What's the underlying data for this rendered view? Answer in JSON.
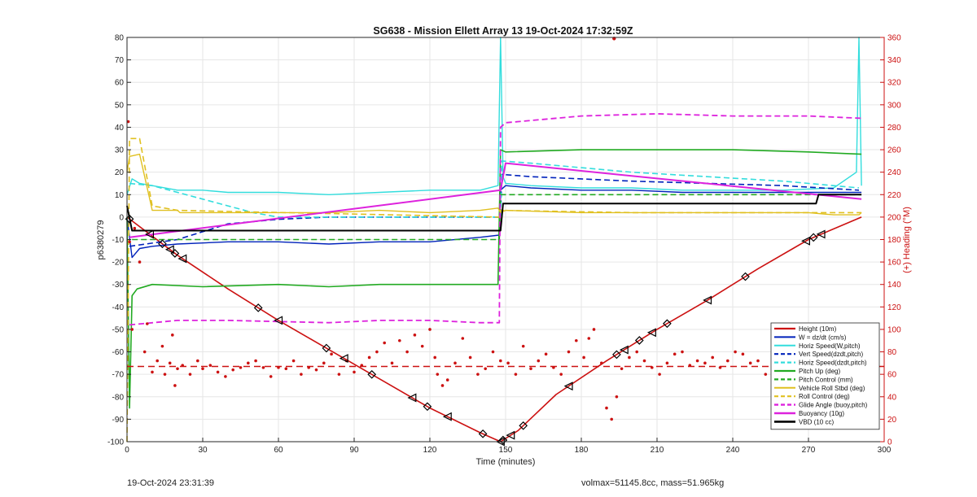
{
  "chart_data": {
    "type": "line",
    "title": "SG638 - Mission Ellett Array 13 19-Oct-2024 17:32:59Z",
    "xlabel": "Time (minutes)",
    "ylabel": "p6380279",
    "y2label": "(+) Heading (°M)",
    "xlim": [
      0,
      300
    ],
    "ylim": [
      -100,
      80
    ],
    "y2lim": [
      0,
      360
    ],
    "xticks": [
      0,
      30,
      60,
      90,
      120,
      150,
      180,
      210,
      240,
      270,
      300
    ],
    "yticks": [
      -100,
      -90,
      -80,
      -70,
      -60,
      -50,
      -40,
      -30,
      -20,
      -10,
      0,
      10,
      20,
      30,
      40,
      50,
      60,
      70,
      80
    ],
    "y2ticks": [
      0,
      20,
      40,
      60,
      80,
      100,
      120,
      140,
      160,
      180,
      200,
      220,
      240,
      260,
      280,
      300,
      320,
      340,
      360
    ],
    "grid": true,
    "legend_position": "bottom-right",
    "series": [
      {
        "name": "Height (10m)",
        "color": "#cc1111",
        "style": "solid",
        "width": 1.6,
        "x": [
          0,
          20,
          40,
          60,
          80,
          100,
          120,
          140,
          148,
          155,
          170,
          190,
          210,
          230,
          250,
          270,
          291
        ],
        "y": [
          0,
          -17,
          -32,
          -46,
          -59,
          -72,
          -85,
          -96,
          -100,
          -95,
          -79,
          -64,
          -50,
          -37,
          -23,
          -10,
          0
        ]
      },
      {
        "name": "W = dz/dt (cm/s)",
        "color": "#0022bb",
        "style": "solid",
        "width": 1.4,
        "x": [
          0,
          2,
          5,
          10,
          20,
          40,
          60,
          80,
          100,
          120,
          140,
          147.5,
          148,
          150,
          160,
          180,
          200,
          220,
          240,
          260,
          280,
          291
        ],
        "y": [
          0,
          -18,
          -14,
          -13,
          -12,
          -11,
          -11,
          -12,
          -11,
          -11,
          -9,
          -8,
          12,
          14,
          13,
          12,
          12,
          11,
          11,
          11,
          11,
          11
        ]
      },
      {
        "name": "Horiz Speed(W,pitch)",
        "color": "#33dddd",
        "style": "solid",
        "width": 1.4,
        "x": [
          0,
          2,
          5,
          10,
          20,
          30,
          40,
          50,
          60,
          80,
          100,
          120,
          140,
          147,
          148,
          149,
          150,
          160,
          180,
          200,
          220,
          240,
          260,
          280,
          289,
          290,
          291
        ],
        "y": [
          10,
          17,
          15,
          14,
          12,
          12,
          11,
          11,
          11,
          10,
          11,
          12,
          12,
          14,
          80,
          18,
          15,
          14,
          13,
          13,
          12,
          12,
          12,
          13,
          20,
          80,
          14
        ]
      },
      {
        "name": "Vert Speed(dzdt,pitch)",
        "color": "#0022bb",
        "style": "dashed",
        "width": 1.6,
        "x": [
          1,
          20,
          40,
          60,
          80,
          148,
          148.5,
          160,
          200,
          260,
          290
        ],
        "y": [
          -13,
          -10,
          -3,
          -1,
          0,
          0,
          19,
          18,
          16,
          14,
          12
        ]
      },
      {
        "name": "Horiz Speed(dzdt,pitch)",
        "color": "#33dddd",
        "style": "dashed",
        "width": 1.6,
        "x": [
          1,
          10,
          20,
          30,
          40,
          50,
          60,
          80,
          148,
          148.5,
          160,
          200,
          260,
          290
        ],
        "y": [
          15,
          14,
          11,
          8,
          5,
          2,
          0,
          0,
          0,
          25,
          24,
          20,
          16,
          13
        ]
      },
      {
        "name": "Pitch Up (deg)",
        "color": "#22aa22",
        "style": "solid",
        "width": 1.6,
        "x": [
          0,
          1,
          2,
          4,
          10,
          30,
          60,
          80,
          100,
          120,
          140,
          147,
          148,
          150,
          180,
          210,
          240,
          270,
          291
        ],
        "y": [
          0,
          -85,
          -35,
          -32,
          -30,
          -31,
          -30,
          -31,
          -30,
          -30,
          -30,
          -30,
          30,
          29,
          30,
          30,
          30,
          29,
          28
        ]
      },
      {
        "name": "Pitch Control (mm)",
        "color": "#22aa22",
        "style": "dashed",
        "width": 1.6,
        "x": [
          2,
          147.5,
          148,
          291
        ],
        "y": [
          -10,
          -10,
          10,
          10
        ]
      },
      {
        "name": "Vehicle Roll Stbd (deg)",
        "color": "#e0c020",
        "style": "solid",
        "width": 1.4,
        "x": [
          0,
          1,
          5,
          10,
          20,
          21,
          60,
          80,
          100,
          120,
          140,
          147,
          148,
          150,
          180,
          210,
          240,
          270,
          280,
          290,
          291
        ],
        "y": [
          20,
          27,
          28,
          3,
          3,
          2,
          2,
          2,
          3,
          2,
          3,
          4,
          2,
          3,
          2,
          2,
          2,
          2,
          1,
          1,
          2
        ]
      },
      {
        "name": "Roll Control (deg)",
        "color": "#e0c020",
        "style": "dashed",
        "width": 1.6,
        "x": [
          0,
          1,
          5,
          10,
          20,
          147.5,
          148,
          200,
          291
        ],
        "y": [
          -100,
          35,
          35,
          5,
          3,
          0,
          3,
          2,
          2
        ]
      },
      {
        "name": "Glide Angle (buoy,pitch)",
        "color": "#dd22dd",
        "style": "dashed",
        "width": 1.8,
        "x": [
          1,
          20,
          40,
          80,
          100,
          120,
          140,
          147.5,
          148,
          150,
          180,
          210,
          240,
          270,
          291
        ],
        "y": [
          -48,
          -46,
          -46,
          -47,
          -46,
          -46,
          -47,
          -47,
          40,
          42,
          45,
          46,
          45,
          45,
          44
        ]
      },
      {
        "name": "Buoyancy (10g)",
        "color": "#dd22dd",
        "style": "solid",
        "width": 2.0,
        "x": [
          1,
          148,
          150,
          291
        ],
        "y": [
          -9,
          12,
          24,
          8
        ]
      },
      {
        "name": "VBD (10 cc)",
        "color": "#000000",
        "style": "solid",
        "width": 2.0,
        "x": [
          0,
          2,
          148,
          149,
          273,
          274,
          291
        ],
        "y": [
          5,
          -6,
          -6,
          6,
          6,
          10,
          10
        ]
      }
    ],
    "heading": {
      "name": "Heading (°M)",
      "color": "#cc1111",
      "target": 67,
      "x": [
        0.5,
        1,
        2,
        3,
        5,
        7,
        8,
        10,
        12,
        14,
        15,
        17,
        18,
        19,
        20,
        22,
        25,
        28,
        30,
        33,
        36,
        39,
        42,
        45,
        48,
        51,
        54,
        57,
        60,
        63,
        66,
        69,
        72,
        75,
        78,
        81,
        84,
        87,
        90,
        93,
        96,
        99,
        102,
        105,
        108,
        111,
        114,
        117,
        120,
        122,
        123,
        125,
        127,
        130,
        133,
        136,
        139,
        142,
        145,
        148,
        151,
        154,
        157,
        160,
        163,
        166,
        169,
        172,
        175,
        178,
        181,
        183,
        185,
        188,
        190,
        192,
        194,
        196,
        199,
        202,
        205,
        208,
        211,
        214,
        217,
        220,
        223,
        226,
        229,
        232,
        235,
        238,
        241,
        244,
        247,
        250,
        253,
        256,
        259,
        262,
        265,
        268,
        271,
        274,
        277,
        280,
        283,
        286,
        288,
        290
      ],
      "y": [
        285,
        178,
        100,
        190,
        160,
        80,
        105,
        62,
        72,
        85,
        60,
        70,
        95,
        50,
        65,
        68,
        60,
        72,
        65,
        68,
        62,
        58,
        64,
        66,
        70,
        72,
        66,
        58,
        66,
        65,
        72,
        60,
        66,
        64,
        70,
        78,
        60,
        72,
        62,
        68,
        75,
        80,
        88,
        70,
        90,
        80,
        95,
        85,
        100,
        75,
        60,
        50,
        55,
        70,
        92,
        75,
        60,
        65,
        80,
        72,
        70,
        60,
        85,
        65,
        72,
        78,
        66,
        60,
        80,
        90,
        75,
        92,
        100,
        70,
        30,
        20,
        40,
        65,
        75,
        80,
        72,
        66,
        60,
        70,
        78,
        80,
        68,
        72,
        70,
        75,
        66,
        72,
        80,
        78,
        70,
        72,
        60,
        65,
        58,
        55,
        60,
        75,
        70,
        66,
        72,
        85,
        65,
        80,
        75,
        90
      ],
      "outlier": {
        "x": 193,
        "y": 359
      }
    },
    "markers": {
      "x": [
        1,
        9,
        14,
        17,
        19,
        22,
        52,
        60,
        79,
        86,
        97,
        113,
        119,
        127,
        141,
        148,
        149,
        152,
        157,
        175,
        194,
        197,
        203,
        208,
        214,
        230,
        245,
        269,
        272,
        275
      ]
    }
  },
  "footer": {
    "left": "19-Oct-2024 23:31:39",
    "right": "volmax=51145.8cc, mass=51.965kg"
  }
}
